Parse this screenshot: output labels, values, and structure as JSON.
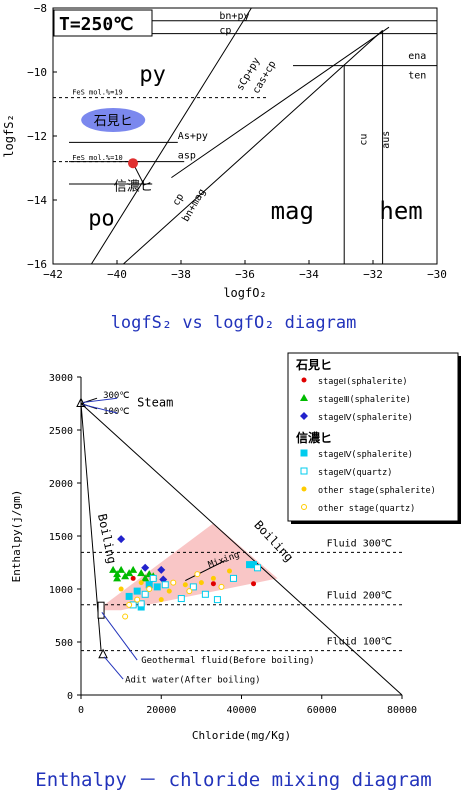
{
  "chart_data": [
    {
      "type": "diagram",
      "caption": "logfS₂ vs logfO₂ diagram",
      "temperature_label": "T=250℃",
      "xlabel": "logfO₂",
      "ylabel": "logfS₂",
      "xlim": [
        -42,
        -30
      ],
      "ylim": [
        -16,
        -8
      ],
      "xticks": [
        -42,
        -40,
        -38,
        -36,
        -34,
        -32,
        -30
      ],
      "yticks": [
        -8,
        -10,
        -12,
        -14,
        -16
      ],
      "boundaries": [
        {
          "id": "bn-py-cp",
          "points": [
            [
              -41.5,
              -8.4
            ],
            [
              -30,
              -8.4
            ]
          ]
        },
        {
          "id": "bn-py-cp-lower",
          "points": [
            [
              -41.5,
              -8.8
            ],
            [
              -30,
              -8.8
            ]
          ]
        },
        {
          "id": "ena-ten",
          "points": [
            [
              -34.5,
              -9.8
            ],
            [
              -30,
              -9.8
            ]
          ]
        },
        {
          "id": "upper-diagonal",
          "points": [
            [
              -38.3,
              -13.3
            ],
            [
              -31.5,
              -8.6
            ]
          ]
        },
        {
          "id": "lower-diagonal",
          "points": [
            [
              -39.8,
              -16
            ],
            [
              -31.7,
              -8.7
            ]
          ]
        },
        {
          "id": "left-diagonal",
          "points": [
            [
              -40.8,
              -16
            ],
            [
              -35.8,
              -8
            ]
          ]
        },
        {
          "id": "as-py",
          "points": [
            [
              -41.5,
              -12.2
            ],
            [
              -38.1,
              -12.2
            ]
          ]
        },
        {
          "id": "asp",
          "points": [
            [
              -41.5,
              -12.8
            ],
            [
              -37.9,
              -12.8
            ]
          ]
        },
        {
          "id": "po-boundary",
          "points": [
            [
              -41.5,
              -13.5
            ],
            [
              -38.9,
              -13.5
            ]
          ]
        },
        {
          "id": "mag-hem",
          "points": [
            [
              -32.9,
              -16
            ],
            [
              -32.9,
              -9.8
            ]
          ]
        },
        {
          "id": "hem-right",
          "points": [
            [
              -31.7,
              -16
            ],
            [
              -31.7,
              -8.7
            ]
          ]
        },
        {
          "id": "fes-19",
          "points": [
            [
              -42,
              -10.8
            ],
            [
              -35.3,
              -10.8
            ]
          ]
        },
        {
          "id": "fes-10",
          "points": [
            [
              -42,
              -12.8
            ],
            [
              -39.3,
              -12.8
            ]
          ]
        }
      ],
      "field_labels": [
        {
          "text": "py",
          "x": -39.3,
          "y": -10.3,
          "size": 22
        },
        {
          "text": "po",
          "x": -40.9,
          "y": -14.8,
          "size": 22
        },
        {
          "text": "mag",
          "x": -35.2,
          "y": -14.6,
          "size": 24
        },
        {
          "text": "hem",
          "x": -31.8,
          "y": -14.6,
          "size": 24
        },
        {
          "text": "bn+py",
          "x": -36.8,
          "y": -8.35,
          "size": 10
        },
        {
          "text": "cp",
          "x": -36.8,
          "y": -8.8,
          "size": 10
        },
        {
          "text": "ena",
          "x": -30.9,
          "y": -9.6,
          "size": 10
        },
        {
          "text": "ten",
          "x": -30.9,
          "y": -10.2,
          "size": 10
        },
        {
          "text": "As+py",
          "x": -38.1,
          "y": -12.1,
          "size": 10
        },
        {
          "text": "asp",
          "x": -38.1,
          "y": -12.7,
          "size": 10
        },
        {
          "text": "FeS mol.%=19",
          "x": -41.4,
          "y": -10.7,
          "size": 7
        },
        {
          "text": "FeS mol.%=10",
          "x": -41.4,
          "y": -12.75,
          "size": 7
        }
      ],
      "rotated_labels": [
        {
          "text": "sCp+py",
          "x": -36.1,
          "y": -10.6,
          "angle": -60,
          "size": 10
        },
        {
          "text": "cas+cp",
          "x": -35.6,
          "y": -10.7,
          "angle": -60,
          "size": 10
        },
        {
          "text": "cp",
          "x": -38.1,
          "y": -14.2,
          "angle": -60,
          "size": 10
        },
        {
          "text": "bn+mag",
          "x": -37.8,
          "y": -14.7,
          "angle": -60,
          "size": 10
        },
        {
          "text": "cu",
          "x": -32.2,
          "y": -12.3,
          "angle": -90,
          "size": 10
        },
        {
          "text": "aus",
          "x": -31.5,
          "y": -12.4,
          "angle": -90,
          "size": 10
        }
      ],
      "annotations": [
        {
          "text": "石見ヒ",
          "type": "ellipse-label",
          "x": -40.9,
          "y": -11.5
        },
        {
          "text": "信濃ヒ",
          "type": "point-label",
          "x": -40.1,
          "y": -13.7,
          "point": [
            -39.5,
            -12.85
          ]
        }
      ]
    },
    {
      "type": "scatter",
      "caption": "Enthalpy － chloride mixing diagram",
      "xlabel": "Chloride(mg/Kg)",
      "ylabel": "Enthalpy(j/gm)",
      "xlim": [
        0,
        80000
      ],
      "ylim": [
        0,
        3000
      ],
      "xticks": [
        0,
        20000,
        40000,
        60000,
        80000
      ],
      "yticks": [
        0,
        500,
        1000,
        1500,
        2000,
        2500,
        3000
      ],
      "grid": false,
      "legend_position": "top-right",
      "legend": {
        "groups": [
          {
            "title": "石見ヒ",
            "items": [
              {
                "label": "stageⅠ(sphalerite)",
                "marker": "circle",
                "color": "#e00000"
              },
              {
                "label": "stageⅢ(sphalerite)",
                "marker": "triangle",
                "color": "#00bb00"
              },
              {
                "label": "stageⅣ(sphalerite)",
                "marker": "diamond",
                "color": "#2222cc"
              }
            ]
          },
          {
            "title": "信濃ヒ",
            "items": [
              {
                "label": "stageⅣ(sphalerite)",
                "marker": "square",
                "color": "#00ccee"
              },
              {
                "label": "stageⅣ(quartz)",
                "marker": "square-open",
                "color": "#00ccee"
              },
              {
                "label": "other stage(sphalerite)",
                "marker": "circle",
                "color": "#ffcc00"
              },
              {
                "label": "other stage(quartz)",
                "marker": "circle-open",
                "color": "#ffcc00"
              }
            ]
          }
        ]
      },
      "reference_lines": [
        {
          "label": "Fluid 300℃",
          "y": 1345
        },
        {
          "label": "Fluid 200℃",
          "y": 852
        },
        {
          "label": "Fluid 100℃",
          "y": 419
        }
      ],
      "lines": [
        {
          "id": "boiling-right",
          "points": [
            [
              0,
              2750
            ],
            [
              80000,
              0
            ]
          ]
        },
        {
          "id": "boiling-left",
          "points": [
            [
              0,
              2750
            ],
            [
              5000,
              419
            ]
          ]
        },
        {
          "id": "steam-top",
          "points": [
            [
              0,
              2750
            ],
            [
              4000,
              2800
            ]
          ]
        },
        {
          "id": "steam-bot",
          "points": [
            [
              0,
              2750
            ],
            [
              4000,
              2700
            ]
          ]
        }
      ],
      "mixing_area": [
        [
          4000,
          800
        ],
        [
          33000,
          1620
        ],
        [
          49000,
          1100
        ],
        [
          10000,
          800
        ]
      ],
      "text_labels": [
        {
          "text": "Steam",
          "x": 14000,
          "y": 2720
        },
        {
          "text": "300℃",
          "x": 5500,
          "y": 2800
        },
        {
          "text": "100℃",
          "x": 5500,
          "y": 2650
        },
        {
          "text": "Boiling",
          "x": 4200,
          "y": 1700,
          "angle": 78
        },
        {
          "text": "Boiling",
          "x": 43000,
          "y": 1600,
          "angle": 47
        },
        {
          "text": "Mixing",
          "x": 32000,
          "y": 1200,
          "angle": -20
        },
        {
          "text": "Geothermal fluid(Before boiling)",
          "x": 15000,
          "y": 300
        },
        {
          "text": "Adit water(After boiling)",
          "x": 11000,
          "y": 120
        }
      ],
      "series": [
        {
          "name": "石見ヒ stageⅠ(sphalerite)",
          "marker": "circle",
          "color": "#e00000",
          "points": [
            [
              33000,
              1050
            ],
            [
              43000,
              1050
            ],
            [
              13000,
              1100
            ]
          ]
        },
        {
          "name": "石見ヒ stageⅢ(sphalerite)",
          "marker": "triangle",
          "color": "#00bb00",
          "points": [
            [
              8000,
              1180
            ],
            [
              9000,
              1140
            ],
            [
              10000,
              1180
            ],
            [
              12000,
              1150
            ],
            [
              13000,
              1180
            ],
            [
              15000,
              1150
            ],
            [
              16000,
              1100
            ],
            [
              17000,
              1140
            ],
            [
              18000,
              1120
            ],
            [
              9000,
              1100
            ],
            [
              11000,
              1120
            ]
          ]
        },
        {
          "name": "石見ヒ stageⅣ(sphalerite)",
          "marker": "diamond",
          "color": "#2222cc",
          "points": [
            [
              10000,
              1470
            ],
            [
              16000,
              1200
            ],
            [
              20000,
              1180
            ],
            [
              20500,
              1090
            ]
          ]
        },
        {
          "name": "信濃ヒ stageⅣ(sphalerite)",
          "marker": "square",
          "color": "#00ccee",
          "points": [
            [
              12000,
              930
            ],
            [
              15000,
              830
            ],
            [
              17000,
              1040
            ],
            [
              42000,
              1230
            ],
            [
              43000,
              1230
            ],
            [
              14000,
              980
            ],
            [
              19000,
              1020
            ]
          ]
        },
        {
          "name": "信濃ヒ stageⅣ(quartz)",
          "marker": "square-open",
          "color": "#00ccee",
          "points": [
            [
              13000,
              850
            ],
            [
              15000,
              860
            ],
            [
              18000,
              1100
            ],
            [
              21000,
              1040
            ],
            [
              25000,
              910
            ],
            [
              28000,
              1020
            ],
            [
              31000,
              950
            ],
            [
              34000,
              900
            ],
            [
              38000,
              1100
            ],
            [
              44000,
              1200
            ],
            [
              16000,
              950
            ]
          ]
        },
        {
          "name": "信濃ヒ other stage(sphalerite)",
          "marker": "circle",
          "color": "#ffcc00",
          "points": [
            [
              10000,
              1000
            ],
            [
              15000,
              1060
            ],
            [
              22000,
              980
            ],
            [
              26000,
              1040
            ],
            [
              33000,
              1100
            ],
            [
              37000,
              1170
            ],
            [
              20000,
              900
            ],
            [
              30000,
              1060
            ]
          ]
        },
        {
          "name": "信濃ヒ other stage(quartz)",
          "marker": "circle-open",
          "color": "#ffcc00",
          "points": [
            [
              11000,
              740
            ],
            [
              14000,
              900
            ],
            [
              17000,
              1000
            ],
            [
              23000,
              1060
            ],
            [
              29000,
              1140
            ],
            [
              35000,
              1020
            ],
            [
              12000,
              850
            ],
            [
              27000,
              980
            ]
          ]
        }
      ],
      "frame_points": {
        "steam": [
          0,
          2750
        ],
        "geothermal_box": [
          5000,
          800
        ],
        "adit": [
          5500,
          380
        ]
      }
    }
  ]
}
